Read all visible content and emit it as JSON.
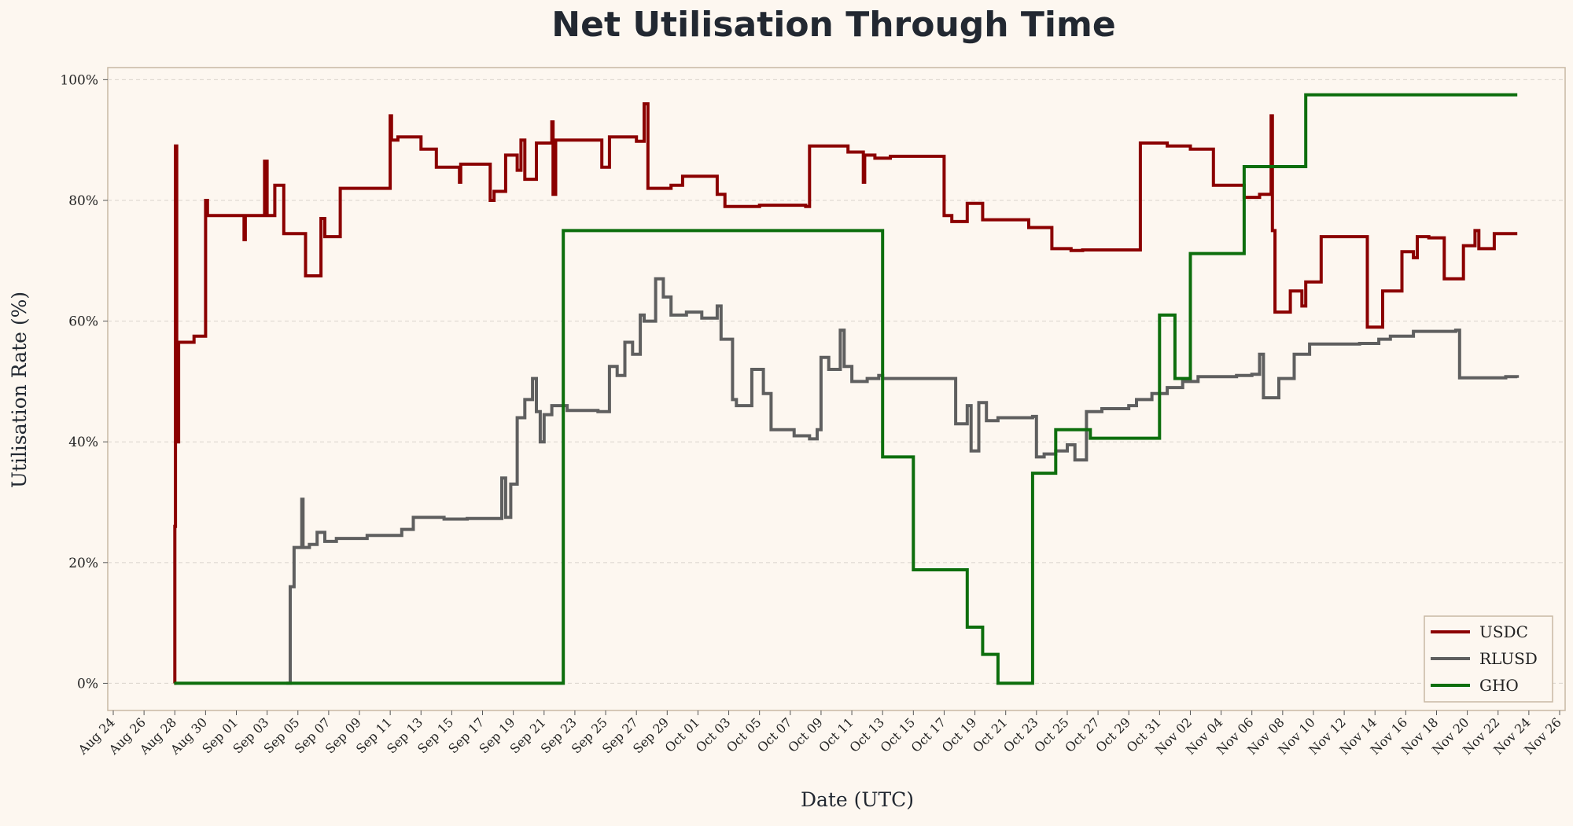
{
  "chart_data": {
    "type": "line",
    "title": "Net Utilisation Through Time",
    "xlabel": "Date (UTC)",
    "ylabel": "Utilisation Rate (%)",
    "ylim": [
      -4.5,
      102
    ],
    "y_ticks": [
      "0%",
      "20%",
      "40%",
      "60%",
      "80%",
      "100%"
    ],
    "y_tick_values": [
      0,
      20,
      40,
      60,
      80,
      100
    ],
    "xlim": [
      "2024-08-24",
      "2024-11-26"
    ],
    "x_ticks": [
      "Aug 24",
      "Aug 26",
      "Aug 28",
      "Aug 30",
      "Sep 01",
      "Sep 03",
      "Sep 05",
      "Sep 07",
      "Sep 09",
      "Sep 11",
      "Sep 13",
      "Sep 15",
      "Sep 17",
      "Sep 19",
      "Sep 21",
      "Sep 23",
      "Sep 25",
      "Sep 27",
      "Sep 29",
      "Oct 01",
      "Oct 03",
      "Oct 05",
      "Oct 07",
      "Oct 09",
      "Oct 11",
      "Oct 13",
      "Oct 15",
      "Oct 17",
      "Oct 19",
      "Oct 21",
      "Oct 23",
      "Oct 25",
      "Oct 27",
      "Oct 29",
      "Oct 31",
      "Nov 02",
      "Nov 04",
      "Nov 06",
      "Nov 08",
      "Nov 10",
      "Nov 12",
      "Nov 14",
      "Nov 16",
      "Nov 18",
      "Nov 20",
      "Nov 22",
      "Nov 24",
      "Nov 26"
    ],
    "x_tick_dates": [
      "2024-08-24",
      "2024-08-26",
      "2024-08-28",
      "2024-08-30",
      "2024-09-01",
      "2024-09-03",
      "2024-09-05",
      "2024-09-07",
      "2024-09-09",
      "2024-09-11",
      "2024-09-13",
      "2024-09-15",
      "2024-09-17",
      "2024-09-19",
      "2024-09-21",
      "2024-09-23",
      "2024-09-25",
      "2024-09-27",
      "2024-09-29",
      "2024-10-01",
      "2024-10-03",
      "2024-10-05",
      "2024-10-07",
      "2024-10-09",
      "2024-10-11",
      "2024-10-13",
      "2024-10-15",
      "2024-10-17",
      "2024-10-19",
      "2024-10-21",
      "2024-10-23",
      "2024-10-25",
      "2024-10-27",
      "2024-10-29",
      "2024-10-31",
      "2024-11-02",
      "2024-11-04",
      "2024-11-06",
      "2024-11-08",
      "2024-11-10",
      "2024-11-12",
      "2024-11-14",
      "2024-11-16",
      "2024-11-18",
      "2024-11-20",
      "2024-11-22",
      "2024-11-24",
      "2024-11-26"
    ],
    "grid": "horizontal dashed",
    "legend_position": "bottom-right",
    "step": true,
    "series": [
      {
        "name": "USDC",
        "color": "#8b0000",
        "points": [
          [
            "2024-08-27 23:00",
            0
          ],
          [
            "2024-08-28 00:00",
            26
          ],
          [
            "2024-08-28 01:00",
            89
          ],
          [
            "2024-08-28 03:00",
            40
          ],
          [
            "2024-08-28 06:00",
            56.5
          ],
          [
            "2024-08-29 06:00",
            57.5
          ],
          [
            "2024-08-30 00:00",
            80
          ],
          [
            "2024-08-30 03:00",
            77.5
          ],
          [
            "2024-09-01 12:00",
            73.5
          ],
          [
            "2024-09-01 14:00",
            77.5
          ],
          [
            "2024-09-02 20:00",
            86.5
          ],
          [
            "2024-09-03 00:00",
            77.5
          ],
          [
            "2024-09-03 12:00",
            82.5
          ],
          [
            "2024-09-04 02:00",
            74.5
          ],
          [
            "2024-09-05 12:00",
            67.5
          ],
          [
            "2024-09-06 12:00",
            77
          ],
          [
            "2024-09-06 18:00",
            74
          ],
          [
            "2024-09-07 18:00",
            82
          ],
          [
            "2024-09-10 12:00",
            82
          ],
          [
            "2024-09-11 00:00",
            94
          ],
          [
            "2024-09-11 02:00",
            90
          ],
          [
            "2024-09-11 12:00",
            90.5
          ],
          [
            "2024-09-13 00:00",
            88.5
          ],
          [
            "2024-09-14 00:00",
            85.5
          ],
          [
            "2024-09-15 12:00",
            83
          ],
          [
            "2024-09-15 14:00",
            86
          ],
          [
            "2024-09-17 12:00",
            80
          ],
          [
            "2024-09-17 18:00",
            81.5
          ],
          [
            "2024-09-18 12:00",
            87.5
          ],
          [
            "2024-09-19 06:00",
            85
          ],
          [
            "2024-09-19 12:00",
            90
          ],
          [
            "2024-09-19 18:00",
            83.5
          ],
          [
            "2024-09-20 12:00",
            89.5
          ],
          [
            "2024-09-21 12:00",
            93
          ],
          [
            "2024-09-21 14:00",
            81
          ],
          [
            "2024-09-21 18:00",
            90
          ],
          [
            "2024-09-24 18:00",
            85.5
          ],
          [
            "2024-09-25 06:00",
            90.5
          ],
          [
            "2024-09-27 00:00",
            89.8
          ],
          [
            "2024-09-27 12:00",
            96
          ],
          [
            "2024-09-27 18:00",
            82
          ],
          [
            "2024-09-29 06:00",
            82.5
          ],
          [
            "2024-09-30 00:00",
            84
          ],
          [
            "2024-10-02 06:00",
            81
          ],
          [
            "2024-10-02 18:00",
            79
          ],
          [
            "2024-10-05 00:00",
            79.2
          ],
          [
            "2024-10-08 00:00",
            79
          ],
          [
            "2024-10-08 06:00",
            89
          ],
          [
            "2024-10-10 18:00",
            88
          ],
          [
            "2024-10-11 18:00",
            83
          ],
          [
            "2024-10-11 20:00",
            87.5
          ],
          [
            "2024-10-12 12:00",
            87
          ],
          [
            "2024-10-13 12:00",
            87.3
          ],
          [
            "2024-10-17 00:00",
            77.5
          ],
          [
            "2024-10-17 12:00",
            76.5
          ],
          [
            "2024-10-18 12:00",
            79.5
          ],
          [
            "2024-10-19 12:00",
            76.8
          ],
          [
            "2024-10-22 12:00",
            75.5
          ],
          [
            "2024-10-24 00:00",
            72
          ],
          [
            "2024-10-25 06:00",
            71.7
          ],
          [
            "2024-10-26 00:00",
            71.8
          ],
          [
            "2024-10-29 18:00",
            89.5
          ],
          [
            "2024-10-31 12:00",
            89
          ],
          [
            "2024-11-02 00:00",
            88.5
          ],
          [
            "2024-11-03 12:00",
            82.5
          ],
          [
            "2024-11-05 12:00",
            80.5
          ],
          [
            "2024-11-06 12:00",
            81
          ],
          [
            "2024-11-07 06:00",
            94
          ],
          [
            "2024-11-07 08:00",
            75
          ],
          [
            "2024-11-07 12:00",
            61.5
          ],
          [
            "2024-11-08 12:00",
            65
          ],
          [
            "2024-11-09 06:00",
            62.5
          ],
          [
            "2024-11-09 12:00",
            66.5
          ],
          [
            "2024-11-10 12:00",
            74
          ],
          [
            "2024-11-13 12:00",
            59
          ],
          [
            "2024-11-14 12:00",
            65
          ],
          [
            "2024-11-15 18:00",
            71.5
          ],
          [
            "2024-11-16 12:00",
            70.5
          ],
          [
            "2024-11-16 18:00",
            74
          ],
          [
            "2024-11-17 12:00",
            73.8
          ],
          [
            "2024-11-18 12:00",
            67
          ],
          [
            "2024-11-19 18:00",
            72.5
          ],
          [
            "2024-11-20 12:00",
            75
          ],
          [
            "2024-11-20 18:00",
            72
          ],
          [
            "2024-11-21 18:00",
            74.5
          ],
          [
            "2024-11-23 06:00",
            74.5
          ]
        ]
      },
      {
        "name": "RLUSD",
        "color": "#5f5f5f",
        "points": [
          [
            "2024-09-04 06:00",
            0
          ],
          [
            "2024-09-04 12:00",
            16
          ],
          [
            "2024-09-04 18:00",
            22.5
          ],
          [
            "2024-09-05 06:00",
            30.5
          ],
          [
            "2024-09-05 08:00",
            22.5
          ],
          [
            "2024-09-05 18:00",
            23
          ],
          [
            "2024-09-06 06:00",
            25
          ],
          [
            "2024-09-06 18:00",
            23.5
          ],
          [
            "2024-09-07 12:00",
            24
          ],
          [
            "2024-09-08 06:00",
            24
          ],
          [
            "2024-09-09 12:00",
            24.5
          ],
          [
            "2024-09-11 18:00",
            25.5
          ],
          [
            "2024-09-12 12:00",
            27.5
          ],
          [
            "2024-09-13 12:00",
            27.5
          ],
          [
            "2024-09-14 12:00",
            27.2
          ],
          [
            "2024-09-16 00:00",
            27.3
          ],
          [
            "2024-09-18 06:00",
            34
          ],
          [
            "2024-09-18 12:00",
            27.5
          ],
          [
            "2024-09-18 20:00",
            33
          ],
          [
            "2024-09-19 06:00",
            44
          ],
          [
            "2024-09-19 18:00",
            47
          ],
          [
            "2024-09-20 06:00",
            50.5
          ],
          [
            "2024-09-20 12:00",
            45
          ],
          [
            "2024-09-20 18:00",
            40
          ],
          [
            "2024-09-21 00:00",
            44.5
          ],
          [
            "2024-09-21 12:00",
            46
          ],
          [
            "2024-09-22 12:00",
            45.2
          ],
          [
            "2024-09-24 12:00",
            45
          ],
          [
            "2024-09-25 06:00",
            52.5
          ],
          [
            "2024-09-25 18:00",
            51
          ],
          [
            "2024-09-26 06:00",
            56.5
          ],
          [
            "2024-09-26 18:00",
            54.5
          ],
          [
            "2024-09-27 06:00",
            61
          ],
          [
            "2024-09-27 12:00",
            60
          ],
          [
            "2024-09-28 06:00",
            67
          ],
          [
            "2024-09-28 18:00",
            64
          ],
          [
            "2024-09-29 06:00",
            61
          ],
          [
            "2024-09-30 06:00",
            61.5
          ],
          [
            "2024-10-01 06:00",
            60.5
          ],
          [
            "2024-10-02 06:00",
            62.5
          ],
          [
            "2024-10-02 12:00",
            57
          ],
          [
            "2024-10-03 06:00",
            47
          ],
          [
            "2024-10-03 12:00",
            46
          ],
          [
            "2024-10-04 12:00",
            52
          ],
          [
            "2024-10-05 06:00",
            48
          ],
          [
            "2024-10-05 18:00",
            42
          ],
          [
            "2024-10-07 06:00",
            41
          ],
          [
            "2024-10-08 06:00",
            40.5
          ],
          [
            "2024-10-08 18:00",
            42
          ],
          [
            "2024-10-09 00:00",
            54
          ],
          [
            "2024-10-09 12:00",
            52
          ],
          [
            "2024-10-10 06:00",
            58.5
          ],
          [
            "2024-10-10 12:00",
            52.5
          ],
          [
            "2024-10-11 00:00",
            50
          ],
          [
            "2024-10-12 00:00",
            50.5
          ],
          [
            "2024-10-12 18:00",
            51
          ],
          [
            "2024-10-13 00:00",
            50.5
          ],
          [
            "2024-10-17 12:00",
            50.5
          ],
          [
            "2024-10-17 18:00",
            43
          ],
          [
            "2024-10-18 12:00",
            46
          ],
          [
            "2024-10-18 18:00",
            38.5
          ],
          [
            "2024-10-19 06:00",
            46.5
          ],
          [
            "2024-10-19 18:00",
            43.5
          ],
          [
            "2024-10-20 12:00",
            44
          ],
          [
            "2024-10-22 18:00",
            44.2
          ],
          [
            "2024-10-23 00:00",
            37.5
          ],
          [
            "2024-10-23 12:00",
            38
          ],
          [
            "2024-10-24 06:00",
            38.5
          ],
          [
            "2024-10-25 00:00",
            39.5
          ],
          [
            "2024-10-25 12:00",
            37
          ],
          [
            "2024-10-26 06:00",
            45
          ],
          [
            "2024-10-27 06:00",
            45.5
          ],
          [
            "2024-10-29 00:00",
            46
          ],
          [
            "2024-10-29 12:00",
            47
          ],
          [
            "2024-10-30 12:00",
            48
          ],
          [
            "2024-10-31 12:00",
            49
          ],
          [
            "2024-11-01 12:00",
            50
          ],
          [
            "2024-11-02 12:00",
            50.8
          ],
          [
            "2024-11-05 00:00",
            51
          ],
          [
            "2024-11-06 00:00",
            51.2
          ],
          [
            "2024-11-06 12:00",
            54.5
          ],
          [
            "2024-11-06 18:00",
            47.3
          ],
          [
            "2024-11-07 18:00",
            50.5
          ],
          [
            "2024-11-08 18:00",
            54.5
          ],
          [
            "2024-11-09 18:00",
            56.2
          ],
          [
            "2024-11-13 00:00",
            56.3
          ],
          [
            "2024-11-14 06:00",
            57
          ],
          [
            "2024-11-15 00:00",
            57.5
          ],
          [
            "2024-11-16 12:00",
            58.3
          ],
          [
            "2024-11-19 06:00",
            58.5
          ],
          [
            "2024-11-19 12:00",
            50.6
          ],
          [
            "2024-11-22 12:00",
            50.8
          ],
          [
            "2024-11-23 06:00",
            50.6
          ]
        ]
      },
      {
        "name": "GHO",
        "color": "#0d6e0d",
        "points": [
          [
            "2024-08-27 23:00",
            0
          ],
          [
            "2024-09-22 06:00",
            0
          ],
          [
            "2024-09-22 06:00",
            75
          ],
          [
            "2024-10-13 00:00",
            75
          ],
          [
            "2024-10-13 00:00",
            37.5
          ],
          [
            "2024-10-15 00:00",
            37.5
          ],
          [
            "2024-10-15 00:00",
            18.8
          ],
          [
            "2024-10-18 12:00",
            18.8
          ],
          [
            "2024-10-18 12:00",
            9.3
          ],
          [
            "2024-10-19 12:00",
            9.3
          ],
          [
            "2024-10-19 12:00",
            4.8
          ],
          [
            "2024-10-20 12:00",
            4.8
          ],
          [
            "2024-10-20 12:00",
            0
          ],
          [
            "2024-10-22 18:00",
            0
          ],
          [
            "2024-10-22 18:00",
            34.8
          ],
          [
            "2024-10-24 06:00",
            34.8
          ],
          [
            "2024-10-24 06:00",
            42
          ],
          [
            "2024-10-26 12:00",
            42
          ],
          [
            "2024-10-26 12:00",
            40.6
          ],
          [
            "2024-10-31 00:00",
            40.6
          ],
          [
            "2024-10-31 00:00",
            61
          ],
          [
            "2024-11-01 00:00",
            61
          ],
          [
            "2024-11-01 00:00",
            50.5
          ],
          [
            "2024-11-02 00:00",
            50.5
          ],
          [
            "2024-11-02 00:00",
            71.2
          ],
          [
            "2024-11-05 12:00",
            71.2
          ],
          [
            "2024-11-05 12:00",
            85.6
          ],
          [
            "2024-11-09 12:00",
            85.6
          ],
          [
            "2024-11-09 12:00",
            97.5
          ],
          [
            "2024-11-23 06:00",
            97.5
          ]
        ]
      }
    ]
  }
}
